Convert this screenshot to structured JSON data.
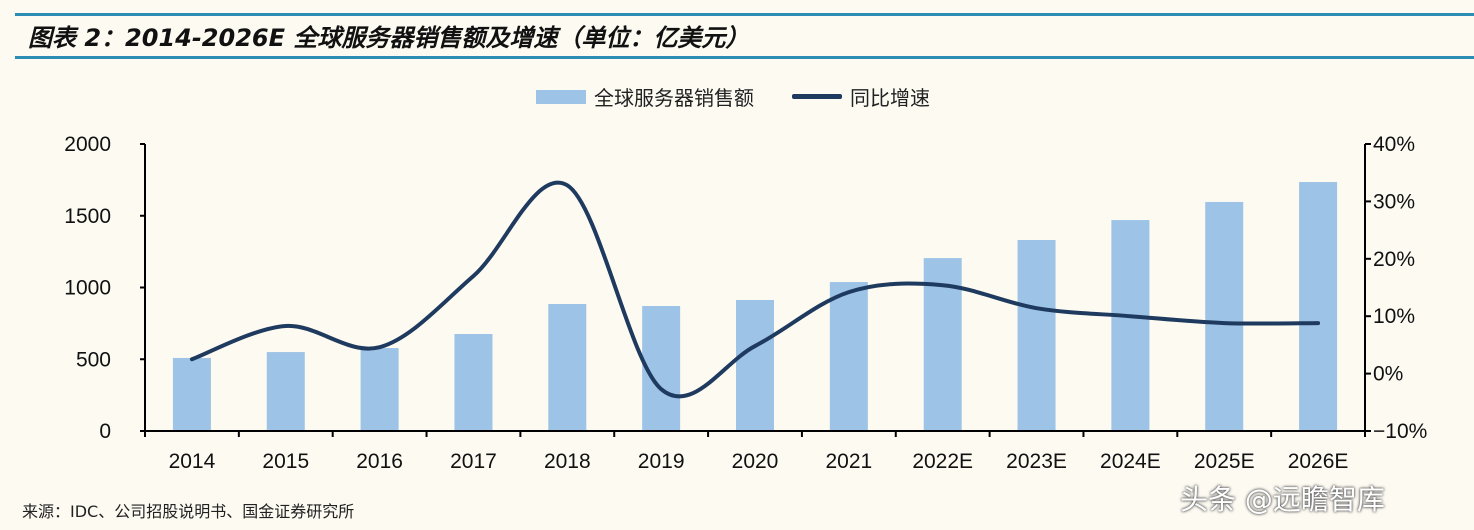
{
  "title": "图表 2：2014-2026E 全球服务器销售额及增速（单位：亿美元）",
  "source": "来源：IDC、公司招股说明书、国金证券研究所",
  "watermark": "头条 @远瞻智库",
  "colors": {
    "bar": "#9dc3e6",
    "line": "#1f3a5f",
    "rule": "#2b8db3",
    "background": "#fdfaf2"
  },
  "chart_data": {
    "type": "bar+line",
    "categories": [
      "2014",
      "2015",
      "2016",
      "2017",
      "2018",
      "2019",
      "2020",
      "2021",
      "2022E",
      "2023E",
      "2024E",
      "2025E",
      "2026E"
    ],
    "series": [
      {
        "name": "全球服务器销售额",
        "type": "bar",
        "axis": "left",
        "values": [
          509,
          550,
          578,
          676,
          885,
          871,
          913,
          1038,
          1205,
          1331,
          1470,
          1596,
          1735
        ]
      },
      {
        "name": "同比增速",
        "type": "line",
        "axis": "right",
        "smooth": true,
        "values": [
          2.5,
          8.3,
          4.6,
          17.0,
          32.8,
          -2.7,
          4.8,
          14.2,
          15.4,
          11.4,
          10.0,
          8.8,
          8.8
        ]
      }
    ],
    "y_left": {
      "lim": [
        0,
        2000
      ],
      "ticks": [
        "0",
        "500",
        "1000",
        "1500",
        "2000"
      ]
    },
    "y_right": {
      "lim": [
        -10,
        40
      ],
      "ticks": [
        "-10%",
        "0%",
        "10%",
        "20%",
        "30%",
        "40%"
      ]
    },
    "legend": "top-center",
    "grid": false
  }
}
